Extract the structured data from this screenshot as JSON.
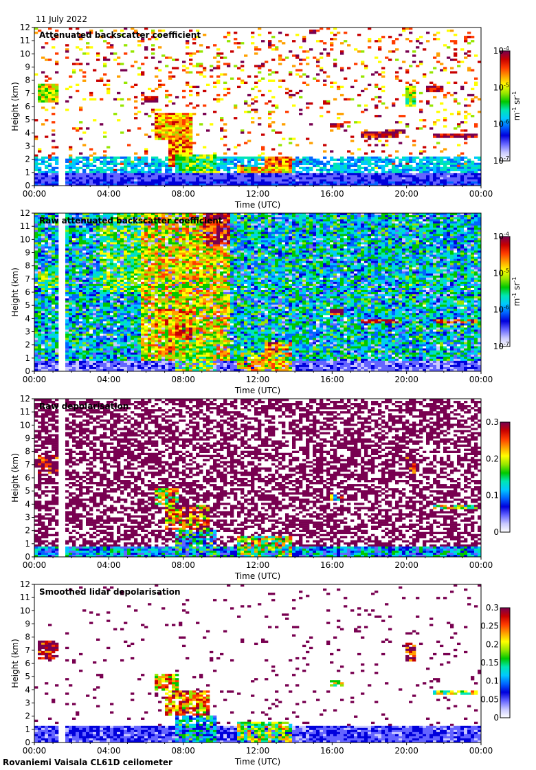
{
  "date": "11 July 2022",
  "footer": "Rovaniemi Vaisala CL61D ceilometer",
  "chart_data": [
    {
      "type": "heatmap",
      "title": "Attenuated backscatter coefficient",
      "xlabel": "Time (UTC)",
      "ylabel": "Height (km)",
      "xticks": [
        "00:00",
        "04:00",
        "08:00",
        "12:00",
        "16:00",
        "20:00",
        "00:00"
      ],
      "yticks": [
        "0",
        "1",
        "2",
        "3",
        "4",
        "5",
        "6",
        "7",
        "8",
        "9",
        "10",
        "11",
        "12"
      ],
      "xlim_hours": [
        0,
        24
      ],
      "ylim_km": [
        0,
        12
      ],
      "scale": "log",
      "colorbar_ticks": [
        {
          "base": "10",
          "exp": "-4"
        },
        {
          "base": "10",
          "exp": "-5"
        },
        {
          "base": "10",
          "exp": "-6"
        },
        {
          "base": "10",
          "exp": "-7"
        }
      ],
      "colorbar_unit": {
        "m": "m",
        "m_exp": "-1",
        "sr": "sr",
        "sr_exp": "-1"
      },
      "colorbar_range": [
        1e-07,
        0.0001
      ],
      "style": "att"
    },
    {
      "type": "heatmap",
      "title": "Raw attenuated backscatter coefficient",
      "xlabel": "Time (UTC)",
      "ylabel": "Height (km)",
      "xticks": [
        "00:00",
        "04:00",
        "08:00",
        "12:00",
        "16:00",
        "20:00",
        "00:00"
      ],
      "yticks": [
        "0",
        "1",
        "2",
        "3",
        "4",
        "5",
        "6",
        "7",
        "8",
        "9",
        "10",
        "11",
        "12"
      ],
      "xlim_hours": [
        0,
        24
      ],
      "ylim_km": [
        0,
        12
      ],
      "scale": "log",
      "colorbar_ticks": [
        {
          "base": "10",
          "exp": "-4"
        },
        {
          "base": "10",
          "exp": "-5"
        },
        {
          "base": "10",
          "exp": "-6"
        },
        {
          "base": "10",
          "exp": "-7"
        }
      ],
      "colorbar_unit": {
        "m": "m",
        "m_exp": "-1",
        "sr": "sr",
        "sr_exp": "-1"
      },
      "colorbar_range": [
        1e-07,
        0.0001
      ],
      "style": "raw"
    },
    {
      "type": "heatmap",
      "title": "Raw depolarisation",
      "xlabel": "Time (UTC)",
      "ylabel": "Height (km)",
      "xticks": [
        "00:00",
        "04:00",
        "08:00",
        "12:00",
        "16:00",
        "20:00",
        "00:00"
      ],
      "yticks": [
        "0",
        "1",
        "2",
        "3",
        "4",
        "5",
        "6",
        "7",
        "8",
        "9",
        "10",
        "11",
        "12"
      ],
      "xlim_hours": [
        0,
        24
      ],
      "ylim_km": [
        0,
        12
      ],
      "scale": "linear",
      "colorbar_ticks": [
        "0.3",
        "0.2",
        "0.1",
        "0"
      ],
      "colorbar_range": [
        0,
        0.3
      ],
      "style": "rawdep"
    },
    {
      "type": "heatmap",
      "title": "Smoothed lidar depolarisation",
      "xlabel": "Time (UTC)",
      "ylabel": "Height (km)",
      "xticks": [
        "00:00",
        "04:00",
        "08:00",
        "12:00",
        "16:00",
        "20:00",
        "00:00"
      ],
      "yticks": [
        "0",
        "1",
        "2",
        "3",
        "4",
        "5",
        "6",
        "7",
        "8",
        "9",
        "10",
        "11",
        "12"
      ],
      "xlim_hours": [
        0,
        24
      ],
      "ylim_km": [
        0,
        12
      ],
      "scale": "linear",
      "colorbar_ticks": [
        "0.3",
        "0.25",
        "0.2",
        "0.15",
        "0.1",
        "0.05",
        "0"
      ],
      "colorbar_range": [
        0,
        0.3
      ],
      "style": "smoothdep"
    }
  ],
  "colormap": [
    "#ffffff",
    "#c8c8ff",
    "#6464ff",
    "#0000dc",
    "#0064ff",
    "#00c8ff",
    "#00e6b4",
    "#00c800",
    "#96e600",
    "#ffff00",
    "#ffa000",
    "#ff3c00",
    "#c80000",
    "#780050"
  ],
  "data_gap_hours": [
    1.25,
    1.6
  ]
}
